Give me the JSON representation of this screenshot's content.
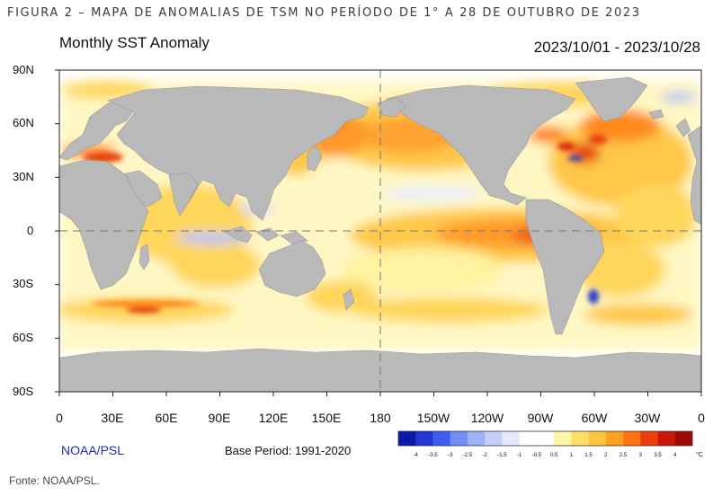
{
  "figure": {
    "caption": "FIGURA 2 – MAPA DE ANOMALIAS DE TSM NO PERÍODO DE 1° A 28 DE OUTUBRO DE 2023",
    "source": "Fonte: NOAA/PSL."
  },
  "map": {
    "title": "Monthly SST Anomaly",
    "period": "2023/10/01 - 2023/10/28",
    "latitude_labels": [
      "90N",
      "60N",
      "30N",
      "0",
      "30S",
      "60S",
      "90S"
    ],
    "longitude_labels": [
      "0",
      "30E",
      "60E",
      "90E",
      "120E",
      "150E",
      "180",
      "150W",
      "120W",
      "90W",
      "60W",
      "30W",
      "0"
    ],
    "brand": "NOAA/PSL",
    "base_period": "Base Period: 1991-2020",
    "colorbar": {
      "ticks": [
        "-4",
        "-3.5",
        "-3",
        "-2.5",
        "-2",
        "-1.5",
        "-1",
        "-0.5",
        "0.5",
        "1",
        "1.5",
        "2",
        "2.5",
        "3",
        "3.5",
        "4"
      ],
      "unit": "°C",
      "colors": [
        "#0a1aa8",
        "#2236d6",
        "#3d5cf0",
        "#6f8df5",
        "#9cb2f7",
        "#c3d0fa",
        "#e4eafc",
        "#ffffff",
        "#ffffff",
        "#fff6a8",
        "#ffe066",
        "#ffc53d",
        "#ffa21f",
        "#ff7410",
        "#ed3e0a",
        "#c8170a",
        "#9e0a06"
      ]
    },
    "colors": {
      "land": "#b9b9b9",
      "ocean_warm_light": "#fff2a0",
      "ocean_warm": "#ffc848",
      "ocean_hot": "#ff8a1f",
      "ocean_very_hot": "#e8460f",
      "ocean_cool": "#c8d4fa",
      "ocean_cold": "#3a55d8"
    }
  }
}
